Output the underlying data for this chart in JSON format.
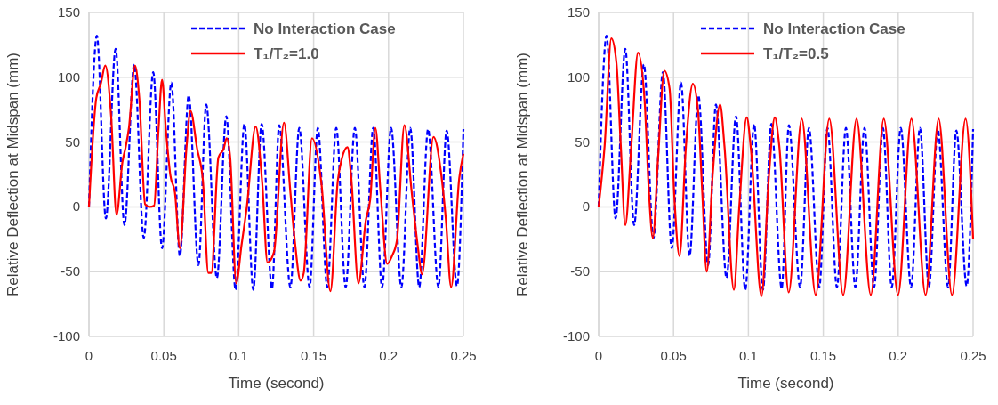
{
  "chart_data": [
    {
      "type": "line",
      "xlabel": "Time (second)",
      "ylabel": "Relative Deflection at Midspan (mm)",
      "xlim": [
        0,
        0.25
      ],
      "xticks": [
        0,
        0.05,
        0.1,
        0.15,
        0.2,
        0.25
      ],
      "ylim": [
        -100,
        150
      ],
      "yticks": [
        -100,
        -50,
        0,
        50,
        100,
        150
      ],
      "grid": true,
      "legend": "top right",
      "series": [
        {
          "name": "No Interaction Case",
          "color": "#0000ff",
          "line_style": "dashed",
          "x": [
            0,
            0.0053,
            0.0113,
            0.0178,
            0.0237,
            0.0302,
            0.0366,
            0.0429,
            0.0488,
            0.055,
            0.0607,
            0.0666,
            0.0731,
            0.0783,
            0.0854,
            0.0917,
            0.0979,
            0.1038,
            0.1097,
            0.1153,
            0.1222,
            0.127,
            0.1345,
            0.1404,
            0.1473,
            0.1528,
            0.1591,
            0.1651,
            0.1714,
            0.1775,
            0.1839,
            0.1898,
            0.1957,
            0.2017,
            0.2086,
            0.2145,
            0.2205,
            0.2264,
            0.2333,
            0.2388,
            0.2457,
            0.25
          ],
          "values": [
            0,
            132,
            -9,
            122,
            -14,
            110,
            -24,
            104,
            -32,
            96,
            -38,
            86,
            -45,
            79,
            -55,
            70,
            -64,
            64,
            -64,
            64,
            -63,
            63,
            -62,
            61,
            -62,
            61,
            -62,
            61,
            -62,
            61,
            -62,
            61,
            -62,
            61,
            -62,
            61,
            -62,
            60,
            -62,
            59,
            -61,
            60
          ]
        },
        {
          "name": "T₁/T₂=1.0",
          "color": "#ff0000",
          "line_style": "solid",
          "x": [
            0,
            0.0049,
            0.0079,
            0.0109,
            0.0148,
            0.0184,
            0.0224,
            0.0243,
            0.0267,
            0.0307,
            0.0336,
            0.0375,
            0.0405,
            0.0435,
            0.0464,
            0.0488,
            0.0514,
            0.0544,
            0.0574,
            0.0607,
            0.0652,
            0.0678,
            0.0722,
            0.0761,
            0.0797,
            0.0817,
            0.0864,
            0.09,
            0.0919,
            0.0943,
            0.0983,
            0.1018,
            0.1054,
            0.1113,
            0.1157,
            0.1192,
            0.1235,
            0.1302,
            0.1345,
            0.1374,
            0.1413,
            0.1434,
            0.1489,
            0.1552,
            0.1612,
            0.1661,
            0.169,
            0.1726,
            0.175,
            0.1799,
            0.1849,
            0.1878,
            0.1912,
            0.1947,
            0.1991,
            0.2023,
            0.2056,
            0.2106,
            0.2155,
            0.2195,
            0.2224,
            0.23,
            0.2353,
            0.2383,
            0.2418,
            0.2472,
            0.25
          ],
          "values": [
            0,
            84,
            95,
            109,
            70,
            -6,
            35,
            45,
            61,
            109,
            84,
            2,
            0,
            1,
            59,
            98,
            59,
            24,
            11,
            -32,
            47,
            74,
            45,
            20,
            -51,
            -51,
            38,
            45,
            53,
            38,
            -59,
            -30,
            0,
            62,
            18,
            -43,
            -35,
            65,
            11,
            -26,
            -57,
            -51,
            53,
            18,
            -65,
            20,
            38,
            46,
            24,
            -59,
            -10,
            6,
            61,
            11,
            -44,
            -38,
            -26,
            63,
            11,
            -30,
            -52,
            54,
            24,
            -10,
            -62,
            22,
            41
          ]
        }
      ]
    },
    {
      "type": "line",
      "xlabel": "Time (second)",
      "ylabel": "Relative Deflection at Midspan (mm)",
      "xlim": [
        0,
        0.25
      ],
      "xticks": [
        0,
        0.05,
        0.1,
        0.15,
        0.2,
        0.25
      ],
      "ylim": [
        -100,
        150
      ],
      "yticks": [
        -100,
        -50,
        0,
        50,
        100,
        150
      ],
      "grid": true,
      "legend": "top right",
      "series": [
        {
          "name": "No Interaction Case",
          "color": "#0000ff",
          "line_style": "dashed",
          "x": [
            0,
            0.0053,
            0.0113,
            0.0178,
            0.0237,
            0.0302,
            0.0366,
            0.0429,
            0.0488,
            0.055,
            0.0607,
            0.0666,
            0.0731,
            0.0783,
            0.0854,
            0.0917,
            0.0979,
            0.1038,
            0.1097,
            0.1153,
            0.1222,
            0.127,
            0.1345,
            0.1404,
            0.1473,
            0.1528,
            0.1591,
            0.1651,
            0.1714,
            0.1775,
            0.1839,
            0.1898,
            0.1957,
            0.2017,
            0.2086,
            0.2145,
            0.2205,
            0.2264,
            0.2333,
            0.2388,
            0.2457,
            0.25
          ],
          "values": [
            0,
            132,
            -9,
            122,
            -14,
            110,
            -24,
            104,
            -32,
            96,
            -38,
            86,
            -45,
            79,
            -55,
            70,
            -64,
            64,
            -64,
            64,
            -63,
            63,
            -62,
            61,
            -62,
            61,
            -62,
            61,
            -62,
            61,
            -62,
            61,
            -62,
            61,
            -62,
            61,
            -62,
            60,
            -62,
            59,
            -61,
            60
          ]
        },
        {
          "name": "T₁/T₂=0.5",
          "color": "#ff0000",
          "line_style": "solid",
          "x": [
            0,
            0.004,
            0.0085,
            0.0119,
            0.0148,
            0.0178,
            0.0218,
            0.0263,
            0.0307,
            0.0336,
            0.0362,
            0.0396,
            0.0439,
            0.0474,
            0.0504,
            0.054,
            0.0583,
            0.0629,
            0.0663,
            0.0692,
            0.0722,
            0.0761,
            0.0811,
            0.084,
            0.0903,
            0.0939,
            0.0989,
            0.1018,
            0.1087,
            0.1137,
            0.1176,
            0.1206,
            0.1269,
            0.1356,
            0.1449,
            0.154,
            0.1633,
            0.1722,
            0.1817,
            0.1904,
            0.1999,
            0.2088,
            0.2183,
            0.227,
            0.2359,
            0.245,
            0.25
          ],
          "values": [
            0,
            47,
            130,
            111,
            47,
            -14,
            47,
            119,
            82,
            11,
            -24,
            36,
            105,
            91,
            11,
            -38,
            47,
            95,
            75,
            11,
            -50,
            24,
            79,
            47,
            -64,
            0,
            69,
            43,
            -69,
            24,
            69,
            47,
            -66,
            68,
            -68,
            68,
            -68,
            68,
            -68,
            68,
            -68,
            68,
            -68,
            68,
            -68,
            68,
            -25
          ]
        }
      ]
    }
  ]
}
